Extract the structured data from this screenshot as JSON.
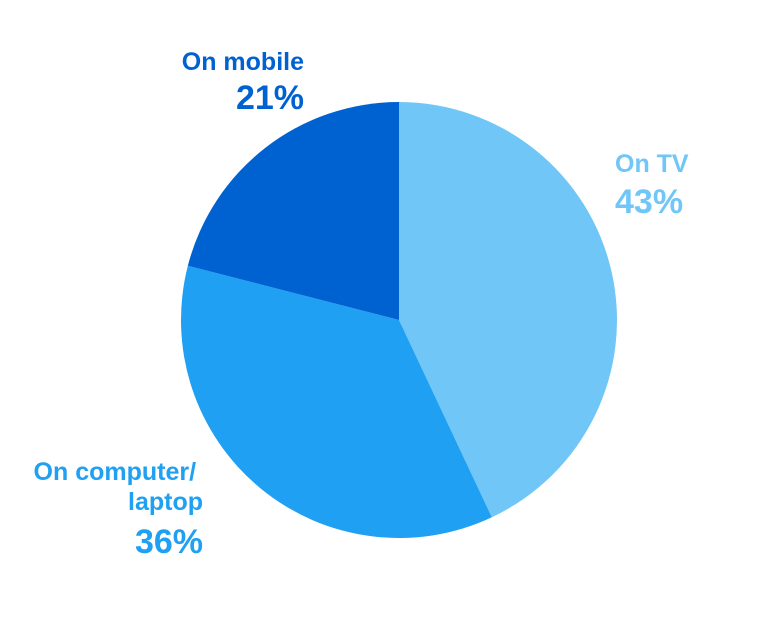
{
  "chart_data": {
    "type": "pie",
    "slices": [
      {
        "label": "On TV",
        "value": 43,
        "value_label": "43%",
        "color": "#70c6f7"
      },
      {
        "label": "On computer/ laptop",
        "value": 36,
        "value_label": "36%",
        "color": "#1fa0f2"
      },
      {
        "label": "On mobile",
        "value": 21,
        "value_label": "21%",
        "color": "#0062d1"
      }
    ]
  }
}
